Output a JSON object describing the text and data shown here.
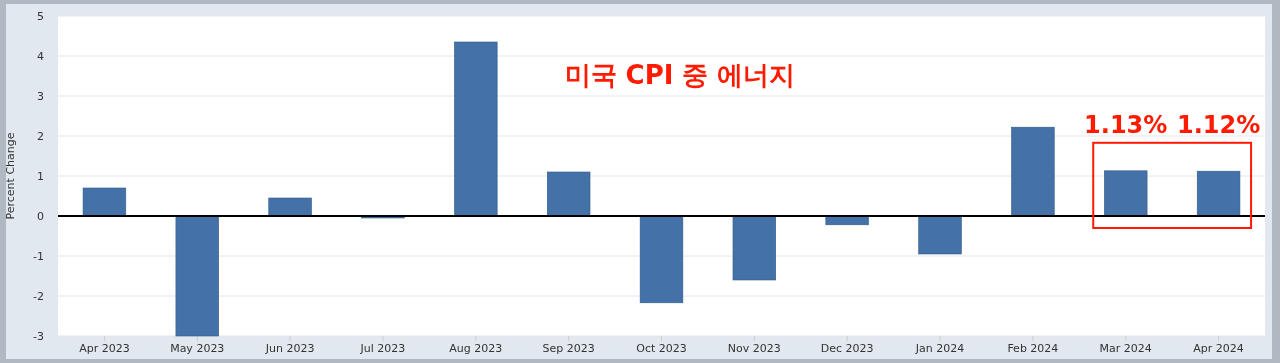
{
  "chart_data": {
    "type": "bar",
    "title": "미국 CPI 중 에너지",
    "ylabel": "Percent Change",
    "categories": [
      "Apr 2023",
      "May 2023",
      "Jun 2023",
      "Jul 2023",
      "Aug 2023",
      "Sep 2023",
      "Oct 2023",
      "Nov 2023",
      "Dec 2023",
      "Jan 2024",
      "Feb 2024",
      "Mar 2024",
      "Apr 2024"
    ],
    "values": [
      0.7,
      -3.0,
      0.45,
      -0.05,
      4.35,
      1.1,
      -2.17,
      -1.6,
      -0.22,
      -0.95,
      2.22,
      1.13,
      1.12
    ],
    "color": "#4472a8",
    "ylim": [
      -3,
      5
    ],
    "yticks": [
      -3,
      -2,
      -1,
      0,
      1,
      2,
      3,
      4,
      5
    ],
    "grid": "y",
    "annotations": [
      {
        "text": "1.13%",
        "x": "Mar 2024",
        "y": 1.13
      },
      {
        "text": "1.12%",
        "x": "Apr 2024",
        "y": 1.12
      }
    ]
  }
}
